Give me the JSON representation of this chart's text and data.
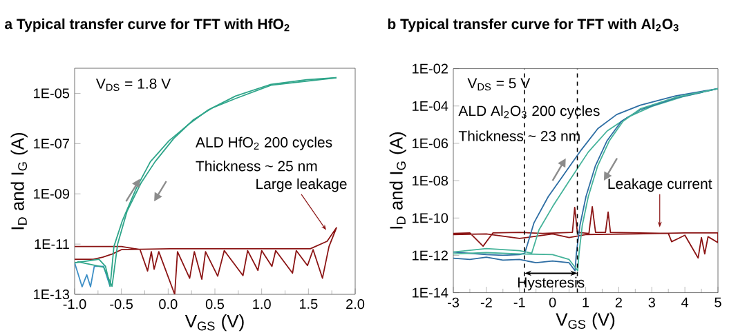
{
  "chart_data": [
    {
      "type": "line",
      "title": "a Typical transfer curve for TFT with HfO$_{2}$",
      "xlabel": "V$_{GS}$ (V)",
      "ylabel": "I$_{D}$ and I$_{G}$ (A)",
      "log": "y",
      "xlim": [
        -1,
        2
      ],
      "xticks": [
        {
          "value": -1,
          "label": "-1.0"
        },
        -0.5,
        {
          "value": 0,
          "label": "0.0"
        },
        0.5,
        {
          "value": 1,
          "label": "1.0"
        },
        1.5,
        {
          "value": 2,
          "label": "2.0"
        }
      ],
      "ylim": [
        1e-13,
        0.0001
      ],
      "yticks": [
        {
          "value": 1e-13,
          "label": "1E-13"
        },
        {
          "value": 1e-11,
          "label": "1E-11"
        },
        {
          "value": 1e-09,
          "label": "1E-09"
        },
        {
          "value": 1e-07,
          "label": "1E-07"
        },
        {
          "value": 1e-05,
          "label": "1E-05"
        }
      ],
      "annotations": [
        "V$_{DS}$ = 1.8 V",
        "ALD HfO$_{2}$ 200 cycles",
        "Thickness ~ 25 nm",
        "Large leakage"
      ],
      "series": [
        {
          "color": "#8b1414",
          "x": [
            -1.0,
            -0.5,
            -0.3,
            -0.22,
            -0.18,
            -0.15,
            -0.1,
            0.07,
            0.1,
            0.23,
            0.28,
            0.36,
            0.4,
            0.53,
            0.6,
            0.8,
            0.85,
            0.96,
            1.0,
            1.11,
            1.15,
            1.33,
            1.37,
            1.49,
            1.55,
            1.65,
            1.72,
            1.8,
            1.7,
            1.52,
            1.02,
            0.52,
            0.02,
            -0.5,
            -0.6,
            -0.7,
            -0.8,
            -1.0
          ],
          "values": [
            8e-12,
            8e-12,
            6e-12,
            8.5e-13,
            5e-12,
            1e-12,
            5e-12,
            1e-13,
            5e-12,
            4.4e-13,
            5e-12,
            4e-13,
            5e-12,
            5.3e-13,
            5.5e-12,
            5.6e-13,
            5.5e-12,
            9e-13,
            5.5e-12,
            1.3e-12,
            5.5e-12,
            7e-13,
            5.5e-12,
            1.4e-12,
            6e-12,
            4.4e-13,
            8e-12,
            4.5e-11,
            1.3e-11,
            6.5e-12,
            6.5e-12,
            6.5e-12,
            6.5e-12,
            6e-12,
            4e-12,
            3e-12,
            2.5e-12,
            2.5e-12
          ]
        },
        {
          "color": "#3d8fc6",
          "x": [
            -1.0,
            -0.92,
            -0.87,
            -0.83,
            -0.79,
            -0.69,
            -0.62
          ],
          "values": [
            1.8e-12,
            2e-13,
            6e-13,
            2e-13,
            1.3e-12,
            1.3e-12,
            2e-13
          ]
        },
        {
          "color": "#2fa58a",
          "x": [
            -1.0,
            -0.74,
            -0.67,
            -0.62,
            -0.58,
            -0.49,
            -0.34,
            -0.19,
            0.01,
            0.22,
            0.42,
            0.72,
            1.1,
            1.48,
            1.8
          ],
          "values": [
            1.8e-12,
            2.5e-12,
            1.3e-12,
            2.1e-13,
            8e-12,
            8.5e-11,
            1.7e-09,
            1.9e-08,
            1.3e-07,
            5.9e-07,
            2.1e-06,
            7.8e-06,
            2.3e-05,
            3.5e-05,
            4.2e-05
          ]
        },
        {
          "color": "#2fa58a",
          "x": [
            1.8,
            1.1,
            0.72,
            0.47,
            0.27,
            0.06,
            -0.14,
            -0.29,
            -0.44,
            -0.54,
            -0.6,
            -0.69,
            -0.97
          ],
          "values": [
            4.2e-05,
            2.1e-05,
            6.2e-06,
            2.6e-06,
            8.9e-07,
            1.6e-07,
            1.9e-08,
            2.7e-09,
            2e-10,
            1e-11,
            2.1e-13,
            1.2e-12,
            2e-12
          ]
        }
      ]
    },
    {
      "type": "line",
      "title": "b Typical transfer curve for TFT with Al$_{2}$O$_{3}$",
      "xlabel": "V$_{GS}$ (V)",
      "ylabel": "I$_{D}$ and I$_{G}$ (A)",
      "log": "y",
      "xlim": [
        -3,
        5
      ],
      "xticks": [
        -3,
        -2,
        -1,
        0,
        1,
        2,
        3,
        4,
        5
      ],
      "ylim": [
        1e-14,
        0.01
      ],
      "yticks": [
        {
          "value": 1e-14,
          "label": "1E-14"
        },
        {
          "value": 1e-12,
          "label": "1E-12"
        },
        {
          "value": 1e-10,
          "label": "1E-10"
        },
        {
          "value": 1e-08,
          "label": "1E-08"
        },
        {
          "value": 1e-06,
          "label": "1E-06"
        },
        {
          "value": 0.0001,
          "label": "1E-04"
        },
        {
          "value": 0.01,
          "label": "1E-02"
        }
      ],
      "annotations": [
        "V$_{DS}$ = 5 V",
        "ALD Al$_{2}$O$_{3}$ 200 cycles",
        "Thickness ~ 23 nm",
        "Leakage current",
        "Hysteresis"
      ],
      "ref_lines": [
        {
          "axis": "x",
          "value": -0.85,
          "color": "#000000",
          "line_style": "dashed"
        },
        {
          "axis": "x",
          "value": 0.75,
          "color": "#000000",
          "line_style": "dashed"
        }
      ],
      "series": [
        {
          "color": "#8b1414",
          "x": [
            -3,
            -2.5,
            -2.1,
            -1.8,
            -1.0,
            -0.3,
            0.6,
            0.67,
            0.75,
            1.1,
            1.2,
            1.3,
            1.6,
            1.68,
            1.75,
            3.5,
            3.6,
            3.8,
            4.0,
            4.4,
            4.5,
            4.6,
            4.7,
            5,
            5,
            4.0,
            2.5,
            1.0,
            0.5,
            0.0,
            -1.0,
            -2.0,
            -3
          ],
          "values": [
            1.5e-11,
            1.6e-11,
            3.1e-12,
            1.6e-11,
            1.7e-11,
            1.5e-11,
            1.7e-11,
            3.7e-10,
            1.7e-11,
            1.5e-11,
            4e-10,
            1.7e-11,
            1.7e-11,
            2.1e-10,
            1.7e-11,
            1.5e-11,
            5.4e-12,
            8e-12,
            1.2e-11,
            7.2e-13,
            9e-12,
            1.2e-12,
            1e-11,
            4.8e-12,
            1.6e-11,
            1.6e-11,
            1.4e-11,
            1.3e-11,
            9e-12,
            1.4e-11,
            8e-12,
            1.4e-11,
            1.3e-11
          ]
        },
        {
          "color": "#2d6da3",
          "x": [
            -3,
            -2,
            -1.5,
            -1.0,
            -0.84,
            -0.56,
            -0.13,
            0.37,
            0.87,
            1.37,
            1.94,
            2.65,
            3.72,
            5
          ],
          "values": [
            1.5e-12,
            1.1e-12,
            1e-12,
            1.1e-12,
            1.3e-12,
            5.6e-11,
            1.4e-09,
            2.5e-08,
            4.5e-07,
            6.2e-06,
            3.5e-05,
            0.00011,
            0.00035,
            0.00085
          ]
        },
        {
          "color": "#45b39a",
          "x": [
            -3,
            -2,
            -1,
            -0.63,
            -0.41,
            0.01,
            0.51,
            1.08,
            1.65,
            2.29,
            3.0,
            3.93,
            5
          ],
          "values": [
            1.5e-12,
            2.3e-12,
            1.8e-12,
            1.3e-12,
            2.3e-11,
            4.3e-10,
            1e-08,
            3.4e-07,
            4.6e-06,
            2.6e-05,
            9.5e-05,
            0.00031,
            0.00085
          ]
        },
        {
          "color": "#2d6da3",
          "x": [
            5,
            3.72,
            2.65,
            2.08,
            1.65,
            1.29,
            1.01,
            0.83,
            0.72,
            0.68,
            0.5,
            0,
            -0.5,
            -1.0,
            -1.5,
            -2,
            -2.5,
            -3
          ],
          "values": [
            0.00085,
            0.00027,
            6.3e-05,
            1.5e-05,
            1.4e-06,
            5.9e-08,
            1.4e-09,
            4.2e-11,
            1.3e-12,
            1.5e-13,
            4e-13,
            5e-13,
            4e-13,
            6e-13,
            5.5e-13,
            8e-13,
            6e-13,
            7e-13
          ]
        },
        {
          "color": "#45b39a",
          "x": [
            5,
            3.72,
            2.65,
            2.13,
            1.72,
            1.36,
            1.08,
            0.9,
            0.8,
            0.76,
            0.5,
            0,
            -1,
            -2,
            -3
          ],
          "values": [
            0.00085,
            0.00029,
            7e-05,
            1.5e-05,
            1.4e-06,
            5.9e-08,
            1.4e-09,
            4.2e-11,
            1.3e-12,
            1.5e-13,
            6e-13,
            1.1e-12,
            1.2e-12,
            1.4e-12,
            1.2e-12
          ]
        }
      ]
    }
  ]
}
